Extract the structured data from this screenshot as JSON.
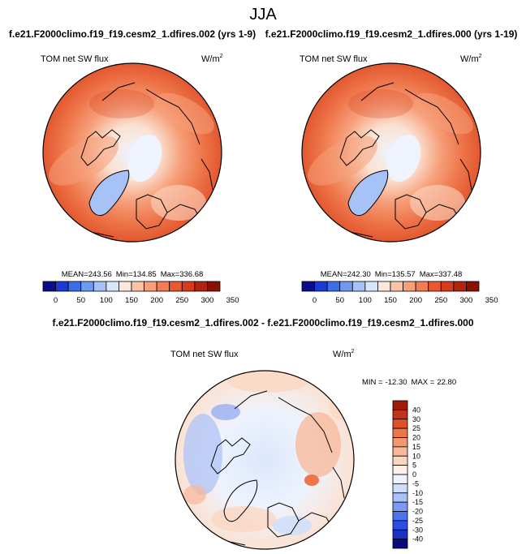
{
  "title": "JJA",
  "colors": {
    "land_outline": "#000000",
    "scale_main": [
      "#0d0d8c",
      "#1b3ad6",
      "#3d6eea",
      "#6f9af2",
      "#a6c2f6",
      "#d8e6fb",
      "#fbe8dc",
      "#f9c4a6",
      "#f6a07a",
      "#f27c55",
      "#e9582f",
      "#d63c1b",
      "#b22410",
      "#8b1004"
    ],
    "scale_diff": [
      "#0b0b7f",
      "#1b33c4",
      "#2c4ee6",
      "#4d72f0",
      "#7a9bf5",
      "#a9c1f8",
      "#cfdffb",
      "#eef3fd",
      "#fdf1ea",
      "#fbd7c3",
      "#f8b798",
      "#f49670",
      "#ee7449",
      "#df512b",
      "#c23318",
      "#a01c08",
      "#7d0b02"
    ]
  },
  "chart_data": [
    {
      "type": "heatmap",
      "projection": "north-polar-stereographic",
      "title": "f.e21.F2000climo.f19_f19.cesm2_1.dfires.002 (yrs 1-9)",
      "variable": "TOM net SW flux",
      "units": "W/m",
      "units_sup": "2",
      "stats": {
        "mean_label": "MEAN=",
        "mean": "243.56",
        "min_label": "Min=",
        "min": "134.85",
        "max_label": "Max=",
        "max": "336.68"
      },
      "colorbar": {
        "orientation": "horizontal",
        "ticks": [
          "0",
          "50",
          "100",
          "150",
          "200",
          "250",
          "300",
          "350"
        ],
        "bins": 14
      }
    },
    {
      "type": "heatmap",
      "projection": "north-polar-stereographic",
      "title": "f.e21.F2000climo.f19_f19.cesm2_1.dfires.000 (yrs 1-19)",
      "variable": "TOM net SW flux",
      "units": "W/m",
      "units_sup": "2",
      "stats": {
        "mean_label": "MEAN=",
        "mean": "242.30",
        "min_label": "Min=",
        "min": "135.57",
        "max_label": "Max=",
        "max": "337.48"
      },
      "colorbar": {
        "orientation": "horizontal",
        "ticks": [
          "0",
          "50",
          "100",
          "150",
          "200",
          "250",
          "300",
          "350"
        ],
        "bins": 14
      }
    },
    {
      "type": "heatmap",
      "projection": "north-polar-stereographic",
      "title": "f.e21.F2000climo.f19_f19.cesm2_1.dfires.002 - f.e21.F2000climo.f19_f19.cesm2_1.dfires.000",
      "variable": "TOM net SW flux",
      "units": "W/m",
      "units_sup": "2",
      "stats": {
        "min_label": "MIN =",
        "min": "-12.30",
        "max_label": "MAX =",
        "max": "22.80"
      },
      "colorbar": {
        "orientation": "vertical",
        "ticks": [
          "40",
          "30",
          "25",
          "20",
          "15",
          "10",
          "5",
          "0",
          "-5",
          "-10",
          "-15",
          "-20",
          "-25",
          "-30",
          "-40"
        ],
        "bins": 16
      }
    }
  ]
}
